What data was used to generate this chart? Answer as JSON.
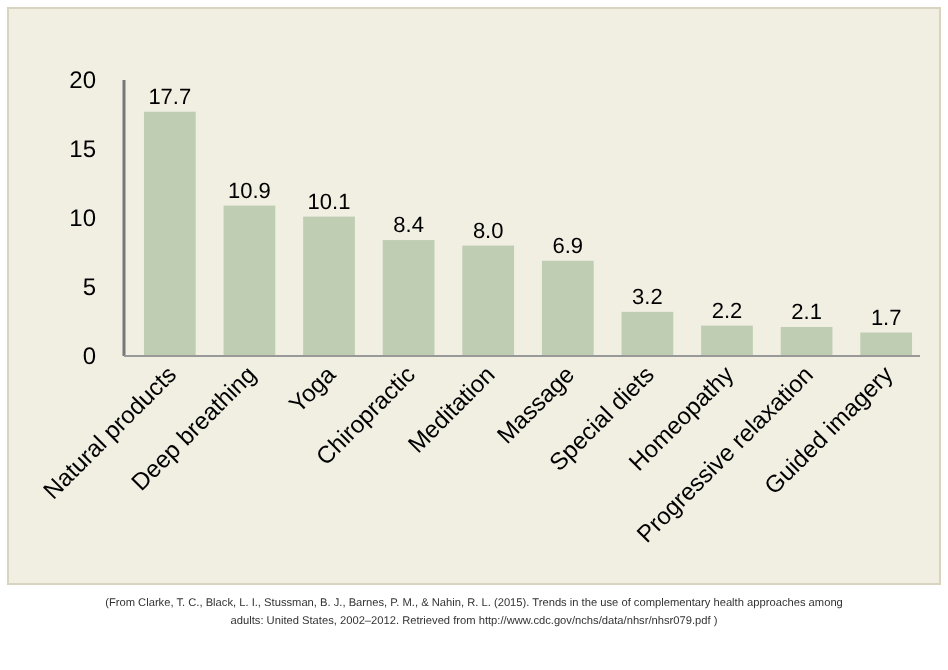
{
  "chart_data": {
    "type": "bar",
    "categories": [
      "Natural products",
      "Deep breathing",
      "Yoga",
      "Chiropractic",
      "Meditation",
      "Massage",
      "Special diets",
      "Homeopathy",
      "Progressive relaxation",
      "Guided imagery"
    ],
    "values": [
      17.7,
      10.9,
      10.1,
      8.4,
      8.0,
      6.9,
      3.2,
      2.2,
      2.1,
      1.7
    ],
    "value_labels": [
      "17.7",
      "10.9",
      "10.1",
      "8.4",
      "8.0",
      "6.9",
      "3.2",
      "2.2",
      "2.1",
      "1.7"
    ],
    "color": "#bfcdb3",
    "ylim": [
      0,
      20
    ],
    "yticks": [
      0,
      5,
      10,
      15,
      20
    ],
    "annotations": [
      "(From Clarke, T. C., Black, L. I., Stussman, B. J., Barnes, P. M., & Nahin, R. L. (2015). Trends in the use of complementary health approaches among adults: United States, 2002–2012. Retrieved from http://www.cdc.gov/nchs/data/nhsr/nhsr079.pdf )"
    ]
  }
}
